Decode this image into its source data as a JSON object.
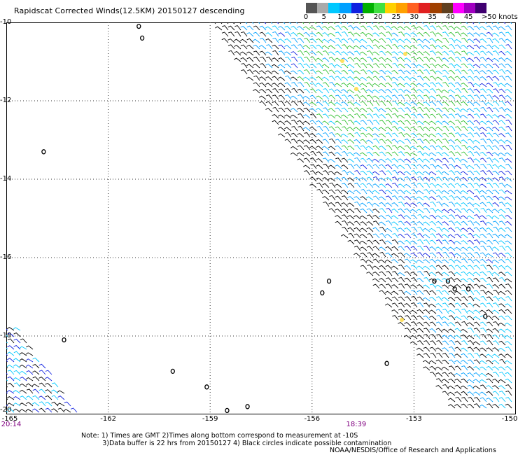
{
  "title": "Rapidscat Corrected Winds(12.5KM) 20150127 descending",
  "colorbar": {
    "colors": [
      "#555555",
      "#aaaaaa",
      "#00c8ff",
      "#00a0ff",
      "#1020e0",
      "#00b000",
      "#40e040",
      "#ffd000",
      "#ffa000",
      "#ff6020",
      "#e02020",
      "#a04000",
      "#604020",
      "#ff00ff",
      "#a000c0",
      "#400070"
    ],
    "labels": [
      "0",
      "5",
      "10",
      "15",
      "20",
      "25",
      "30",
      "35",
      "40",
      "45"
    ],
    "unit_label": ">50 knots"
  },
  "map": {
    "lat_labels": [
      "-10",
      "-12",
      "-14",
      "-16",
      "-18",
      "-20"
    ],
    "lon_labels": [
      "-165",
      "-162",
      "-159",
      "-156",
      "-153",
      "-150"
    ],
    "lat_range": [
      -20,
      -10
    ],
    "lon_range": [
      -165,
      -150
    ],
    "time_labels": [
      {
        "text": "20:14",
        "lon": -165,
        "color": "#800080"
      },
      {
        "text": "18:39",
        "lon": -154.7,
        "color": "#800080"
      }
    ],
    "islands": [
      {
        "lon": -161.1,
        "lat": -10.1
      },
      {
        "lon": -161.0,
        "lat": -10.4
      },
      {
        "lon": -163.9,
        "lat": -13.3
      },
      {
        "lon": -153.8,
        "lat": -18.7
      },
      {
        "lon": -155.5,
        "lat": -16.6
      },
      {
        "lon": -155.7,
        "lat": -16.9
      },
      {
        "lon": -152.4,
        "lat": -16.6
      },
      {
        "lon": -152.0,
        "lat": -16.6
      },
      {
        "lon": -151.8,
        "lat": -16.8
      },
      {
        "lon": -151.4,
        "lat": -16.8
      },
      {
        "lon": -150.9,
        "lat": -17.5
      },
      {
        "lon": -163.3,
        "lat": -18.1
      },
      {
        "lon": -160.1,
        "lat": -18.9
      },
      {
        "lon": -159.1,
        "lat": -19.3
      },
      {
        "lon": -157.9,
        "lat": -19.8
      },
      {
        "lon": -158.5,
        "lat": -19.9
      }
    ]
  },
  "notes": "Note: 1) Times are GMT 2)Times along bottom correspond to measurement at -10S\n          3)Data buffer is 22 hrs from 20150127 4) Black circles indicate possible contamination",
  "credit": "NOAA/NESDIS/Office of Research and Applications"
}
